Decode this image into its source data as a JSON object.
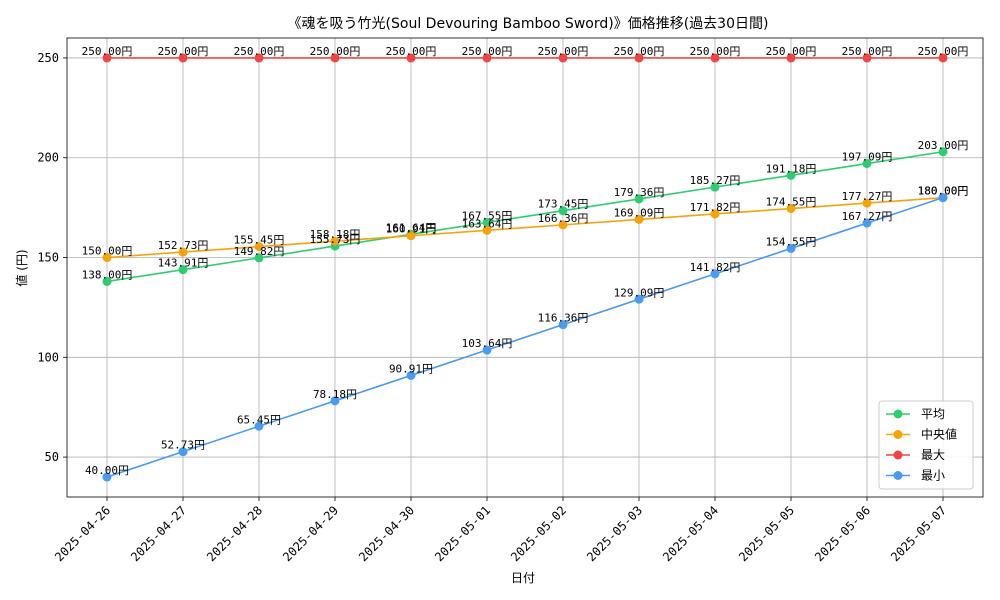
{
  "chart_data": {
    "type": "line",
    "title": "《魂を吸う竹光(Soul Devouring Bamboo Sword)》価格推移(過去30日間)",
    "xlabel": "日付",
    "ylabel": "値 (円)",
    "categories": [
      "2025-04-26",
      "2025-04-27",
      "2025-04-28",
      "2025-04-29",
      "2025-04-30",
      "2025-05-01",
      "2025-05-02",
      "2025-05-03",
      "2025-05-04",
      "2025-05-05",
      "2025-05-06",
      "2025-05-07"
    ],
    "ylim": [
      30,
      260
    ],
    "yticks": [
      50,
      100,
      150,
      200,
      250
    ],
    "grid": true,
    "legend_position": "lower-right",
    "series": [
      {
        "name": "平均",
        "color": "#2ecc71",
        "values": [
          138.0,
          143.91,
          149.82,
          155.73,
          161.64,
          167.55,
          173.45,
          179.36,
          185.27,
          191.18,
          197.09,
          203.0
        ],
        "labels": [
          "138.00円",
          "143.91円",
          "149.82円",
          "155.73円",
          "161.64円",
          "167.55円",
          "173.45円",
          "179.36円",
          "185.27円",
          "191.18円",
          "197.09円",
          "203.00円"
        ]
      },
      {
        "name": "中央値",
        "color": "#f5a30a",
        "values": [
          150.0,
          152.73,
          155.45,
          158.18,
          160.91,
          163.64,
          166.36,
          169.09,
          171.82,
          174.55,
          177.27,
          180.0
        ],
        "labels": [
          "150.00円",
          "152.73円",
          "155.45円",
          "158.18円",
          "160.91円",
          "163.64円",
          "166.36円",
          "169.09円",
          "171.82円",
          "174.55円",
          "177.27円",
          "180.00円"
        ]
      },
      {
        "name": "最大",
        "color": "#ef4444",
        "values": [
          250.0,
          250.0,
          250.0,
          250.0,
          250.0,
          250.0,
          250.0,
          250.0,
          250.0,
          250.0,
          250.0,
          250.0
        ],
        "labels": [
          "250.00円",
          "250.00円",
          "250.00円",
          "250.00円",
          "250.00円",
          "250.00円",
          "250.00円",
          "250.00円",
          "250.00円",
          "250.00円",
          "250.00円",
          "250.00円"
        ]
      },
      {
        "name": "最小",
        "color": "#4a9af0",
        "values": [
          40.0,
          52.73,
          65.45,
          78.18,
          90.91,
          103.64,
          116.36,
          129.09,
          141.82,
          154.55,
          167.27,
          180.0
        ],
        "labels": [
          "40.00円",
          "52.73円",
          "65.45円",
          "78.18円",
          "90.91円",
          "103.64円",
          "116.36円",
          "129.09円",
          "141.82円",
          "154.55円",
          "167.27円",
          "180.00円"
        ]
      }
    ]
  }
}
